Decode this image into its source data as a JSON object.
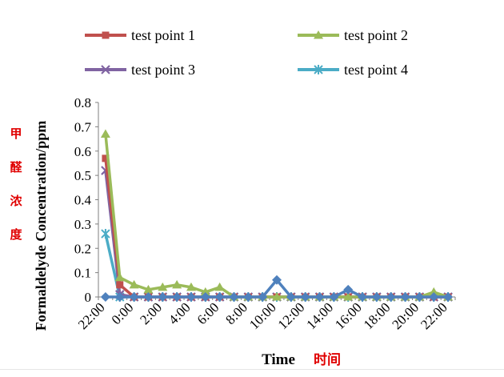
{
  "chart_data": {
    "type": "line",
    "xlabel": "Time",
    "xlabel_cn": "时间",
    "ylabel": "Formaldelyde Concentration/ppm",
    "ylabel_cn": [
      "甲",
      "醛",
      "浓",
      "度"
    ],
    "ylim": [
      0,
      0.8
    ],
    "yticks": [
      "0",
      "0.1",
      "0.2",
      "0.3",
      "0.4",
      "0.5",
      "0.6",
      "0.7",
      "0.8"
    ],
    "xtick_labels": [
      "22:00",
      "0:00",
      "2:00",
      "4:00",
      "6:00",
      "8:00",
      "10:00",
      "12:00",
      "14:00",
      "16:00",
      "18:00",
      "20:00",
      "22:00"
    ],
    "x_count": 25,
    "legend_position": "top",
    "grid": false,
    "series": [
      {
        "name": "test point 1",
        "color": "#C0504D",
        "marker": "square",
        "values": [
          0.57,
          0.05,
          0,
          0,
          0,
          0,
          0,
          0,
          0,
          0,
          0,
          0,
          0,
          0,
          0,
          0,
          0,
          0,
          0,
          0,
          0,
          0,
          0,
          0,
          0
        ]
      },
      {
        "name": "test point 2",
        "color": "#9BBB59",
        "marker": "triangle",
        "values": [
          0.67,
          0.08,
          0.05,
          0.03,
          0.04,
          0.05,
          0.04,
          0.02,
          0.04,
          0,
          0,
          0,
          0,
          0,
          0,
          0,
          0,
          0,
          0,
          0,
          0,
          0,
          0,
          0.02,
          0
        ]
      },
      {
        "name": "test point 3",
        "color": "#8064A2",
        "marker": "x",
        "values": [
          0.52,
          0.01,
          0,
          0,
          0,
          0,
          0,
          0,
          0,
          0,
          0,
          0,
          0,
          0,
          0,
          0,
          0,
          0,
          0,
          0,
          0,
          0,
          0,
          0,
          0
        ]
      },
      {
        "name": "test point 4",
        "color": "#4BACC6",
        "marker": "star",
        "values": [
          0.26,
          0,
          0,
          0,
          0,
          0,
          0,
          0,
          0,
          0,
          0,
          0,
          0,
          0,
          0,
          0,
          0,
          0,
          0,
          0,
          0,
          0,
          0,
          0,
          0
        ]
      },
      {
        "name": "",
        "color": "#4F81BD",
        "marker": "diamond",
        "values": [
          0,
          0,
          0,
          0,
          0,
          0,
          0,
          0,
          0,
          0,
          0,
          0,
          0.07,
          0,
          0,
          0,
          0,
          0.03,
          0,
          0,
          0,
          0,
          0,
          0,
          0
        ]
      }
    ]
  }
}
